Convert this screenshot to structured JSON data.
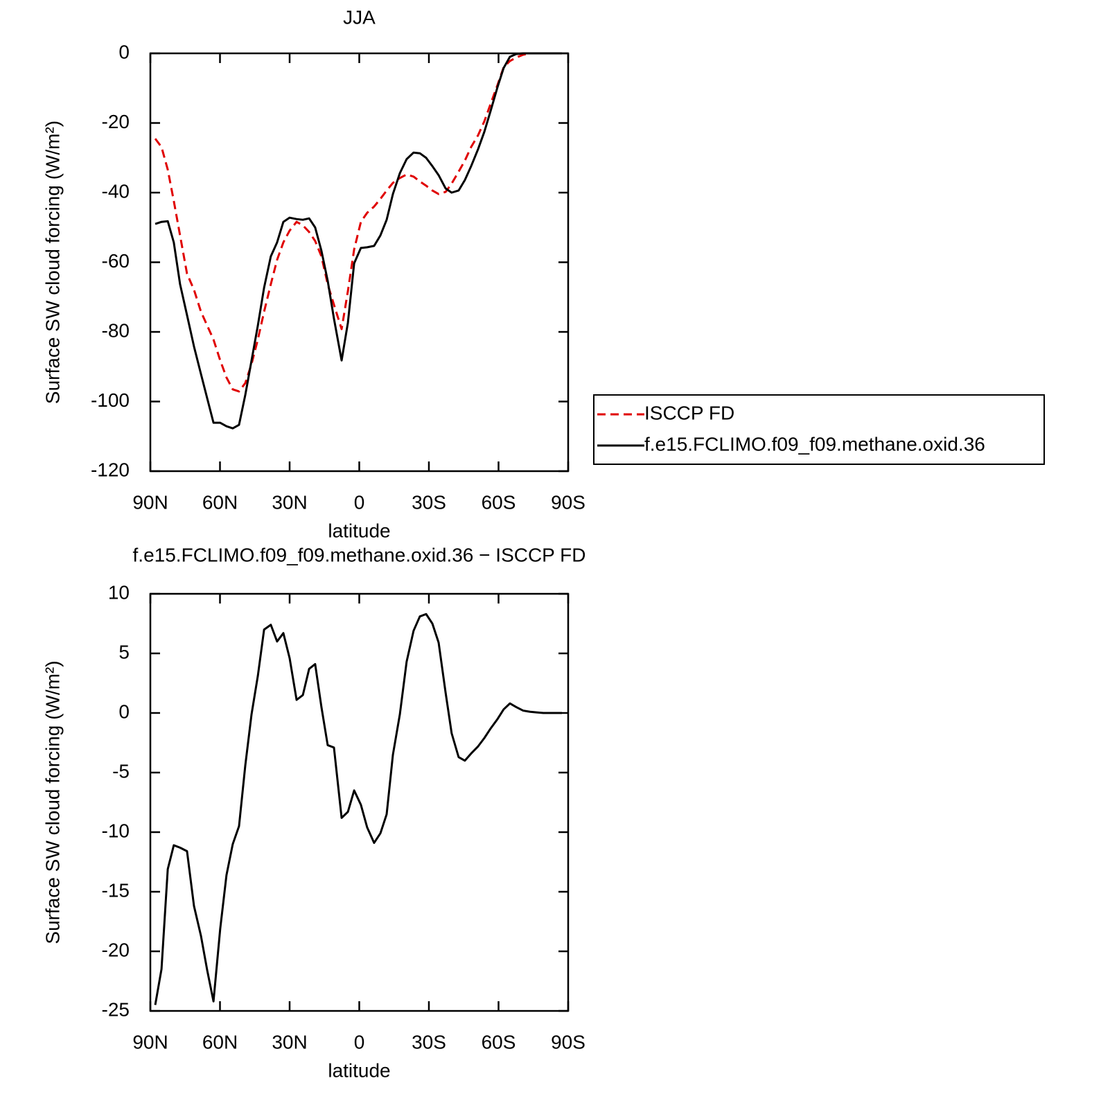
{
  "chart_data": [
    {
      "type": "line",
      "title": "JJA",
      "xlabel": "latitude",
      "ylabel": "Surface SW cloud forcing (W/m²)",
      "x": [
        87.9,
        85.2,
        82.5,
        79.9,
        77.2,
        74.2,
        71.2,
        68.2,
        65.5,
        62.8,
        59.9,
        57.2,
        54.5,
        51.8,
        49.1,
        46.4,
        43.7,
        41.0,
        38.1,
        35.4,
        32.7,
        30.0,
        27.0,
        24.3,
        21.6,
        19.0,
        16.3,
        13.6,
        10.9,
        7.6,
        4.9,
        2.2,
        -0.7,
        -3.4,
        -6.4,
        -9.1,
        -11.8,
        -14.5,
        -17.5,
        -20.4,
        -23.4,
        -26.1,
        -28.8,
        -31.5,
        -34.2,
        -37.2,
        -39.8,
        -42.8,
        -45.5,
        -48.2,
        -51.2,
        -53.9,
        -56.6,
        -59.6,
        -62.2,
        -64.9,
        -67.6,
        -70.6,
        -73.6,
        -76.3,
        -79.3,
        -81.9,
        -84.6,
        -87.3
      ],
      "xlim": [
        90,
        -90
      ],
      "xticks": [
        {
          "value": 90,
          "label": "90N"
        },
        {
          "value": 60,
          "label": "60N"
        },
        {
          "value": 30,
          "label": "30N"
        },
        0,
        {
          "value": -30,
          "label": "30S"
        },
        {
          "value": -60,
          "label": "60S"
        },
        {
          "value": -90,
          "label": "90S"
        }
      ],
      "ylim": [
        -120,
        0
      ],
      "yticks": [
        0,
        -20,
        -40,
        -60,
        -80,
        -100,
        -120
      ],
      "legend": "right",
      "series": [
        {
          "name": "ISCCP FD",
          "color": "#e00000",
          "linestyle": "dashed",
          "values": [
            -24.5,
            -26.9,
            -33.4,
            -42.4,
            -52.3,
            -63.3,
            -67.9,
            -74.2,
            -78.2,
            -82.2,
            -88.2,
            -93.1,
            -96.5,
            -97.1,
            -94.7,
            -89.2,
            -82.2,
            -74.2,
            -66.3,
            -59.3,
            -54.3,
            -50.9,
            -48.4,
            -49.4,
            -51.3,
            -53.9,
            -58.3,
            -66.3,
            -72.2,
            -79.2,
            -68.3,
            -56.3,
            -48.4,
            -45.8,
            -44.0,
            -41.8,
            -39.4,
            -37.2,
            -35.8,
            -34.8,
            -35.4,
            -36.8,
            -38.0,
            -39.4,
            -40.4,
            -39.8,
            -37.4,
            -34.0,
            -30.8,
            -26.9,
            -23.5,
            -19.5,
            -14.5,
            -9.0,
            -4.0,
            -2.2,
            -1.2,
            -0.4,
            0,
            0,
            0,
            0,
            0,
            0
          ]
        },
        {
          "name": "f.e15.FCLIMO.f09_f09.methane.oxid.36",
          "color": "#000000",
          "linestyle": "solid",
          "values": [
            -49.0,
            -48.4,
            -48.2,
            -54.3,
            -66.3,
            -75.2,
            -84.2,
            -92.1,
            -99.1,
            -106.1,
            -106.1,
            -107.1,
            -107.7,
            -106.7,
            -98.1,
            -88.2,
            -78.2,
            -67.3,
            -58.3,
            -54.3,
            -48.4,
            -47.2,
            -47.6,
            -47.8,
            -47.4,
            -50.0,
            -56.7,
            -65.3,
            -76.2,
            -88.2,
            -77.4,
            -60.3,
            -55.9,
            -55.7,
            -55.3,
            -52.3,
            -47.8,
            -40.4,
            -34.4,
            -30.4,
            -28.5,
            -28.7,
            -30.0,
            -32.4,
            -35.0,
            -38.8,
            -40.0,
            -39.4,
            -36.4,
            -32.4,
            -27.5,
            -22.5,
            -16.5,
            -9.6,
            -4.2,
            -1.0,
            -0.2,
            0,
            0,
            0,
            0,
            0,
            0,
            0
          ]
        }
      ]
    },
    {
      "type": "line",
      "title": "f.e15.FCLIMO.f09_f09.methane.oxid.36 − ISCCP FD",
      "xlabel": "latitude",
      "ylabel": "Surface SW cloud forcing (W/m²)",
      "x": [
        87.9,
        85.2,
        82.5,
        79.9,
        77.2,
        74.2,
        71.2,
        68.2,
        65.5,
        62.8,
        59.9,
        57.2,
        54.5,
        51.8,
        49.1,
        46.4,
        43.7,
        41.0,
        38.1,
        35.4,
        32.7,
        30.0,
        27.0,
        24.3,
        21.6,
        19.0,
        16.3,
        13.6,
        10.9,
        7.6,
        4.9,
        2.2,
        -0.7,
        -3.4,
        -6.4,
        -9.1,
        -11.8,
        -14.5,
        -17.5,
        -20.4,
        -23.4,
        -26.1,
        -28.8,
        -31.5,
        -34.2,
        -37.2,
        -39.8,
        -42.8,
        -45.5,
        -48.2,
        -51.2,
        -53.9,
        -56.6,
        -59.6,
        -62.2,
        -64.9,
        -67.6,
        -70.6,
        -73.6,
        -76.3,
        -79.3,
        -81.9,
        -84.6,
        -87.3
      ],
      "xlim": [
        90,
        -90
      ],
      "xticks": [
        {
          "value": 90,
          "label": "90N"
        },
        {
          "value": 60,
          "label": "60N"
        },
        {
          "value": 30,
          "label": "30N"
        },
        0,
        {
          "value": -30,
          "label": "30S"
        },
        {
          "value": -60,
          "label": "60S"
        },
        {
          "value": -90,
          "label": "90S"
        }
      ],
      "ylim": [
        -25,
        10
      ],
      "yticks": [
        10,
        5,
        0,
        -5,
        -10,
        -15,
        -20,
        -25
      ],
      "color": "#000000",
      "values": [
        -24.5,
        -21.5,
        -13.1,
        -11.1,
        -11.3,
        -11.6,
        -16.2,
        -18.7,
        -21.6,
        -24.2,
        -18.1,
        -13.6,
        -11.0,
        -9.5,
        -4.4,
        -0.1,
        3.1,
        7.0,
        7.4,
        6.0,
        6.7,
        4.6,
        1.1,
        1.5,
        3.7,
        4.1,
        0.5,
        -2.7,
        -2.9,
        -8.8,
        -8.3,
        -6.5,
        -7.7,
        -9.6,
        -10.9,
        -10.1,
        -8.5,
        -3.5,
        -0.1,
        4.3,
        6.9,
        8.1,
        8.3,
        7.5,
        5.9,
        1.7,
        -1.7,
        -3.7,
        -4.0,
        -3.4,
        -2.8,
        -2.1,
        -1.3,
        -0.5,
        0.3,
        0.8,
        0.5,
        0.2,
        0.1,
        0.05,
        0,
        0,
        0,
        0
      ]
    }
  ]
}
